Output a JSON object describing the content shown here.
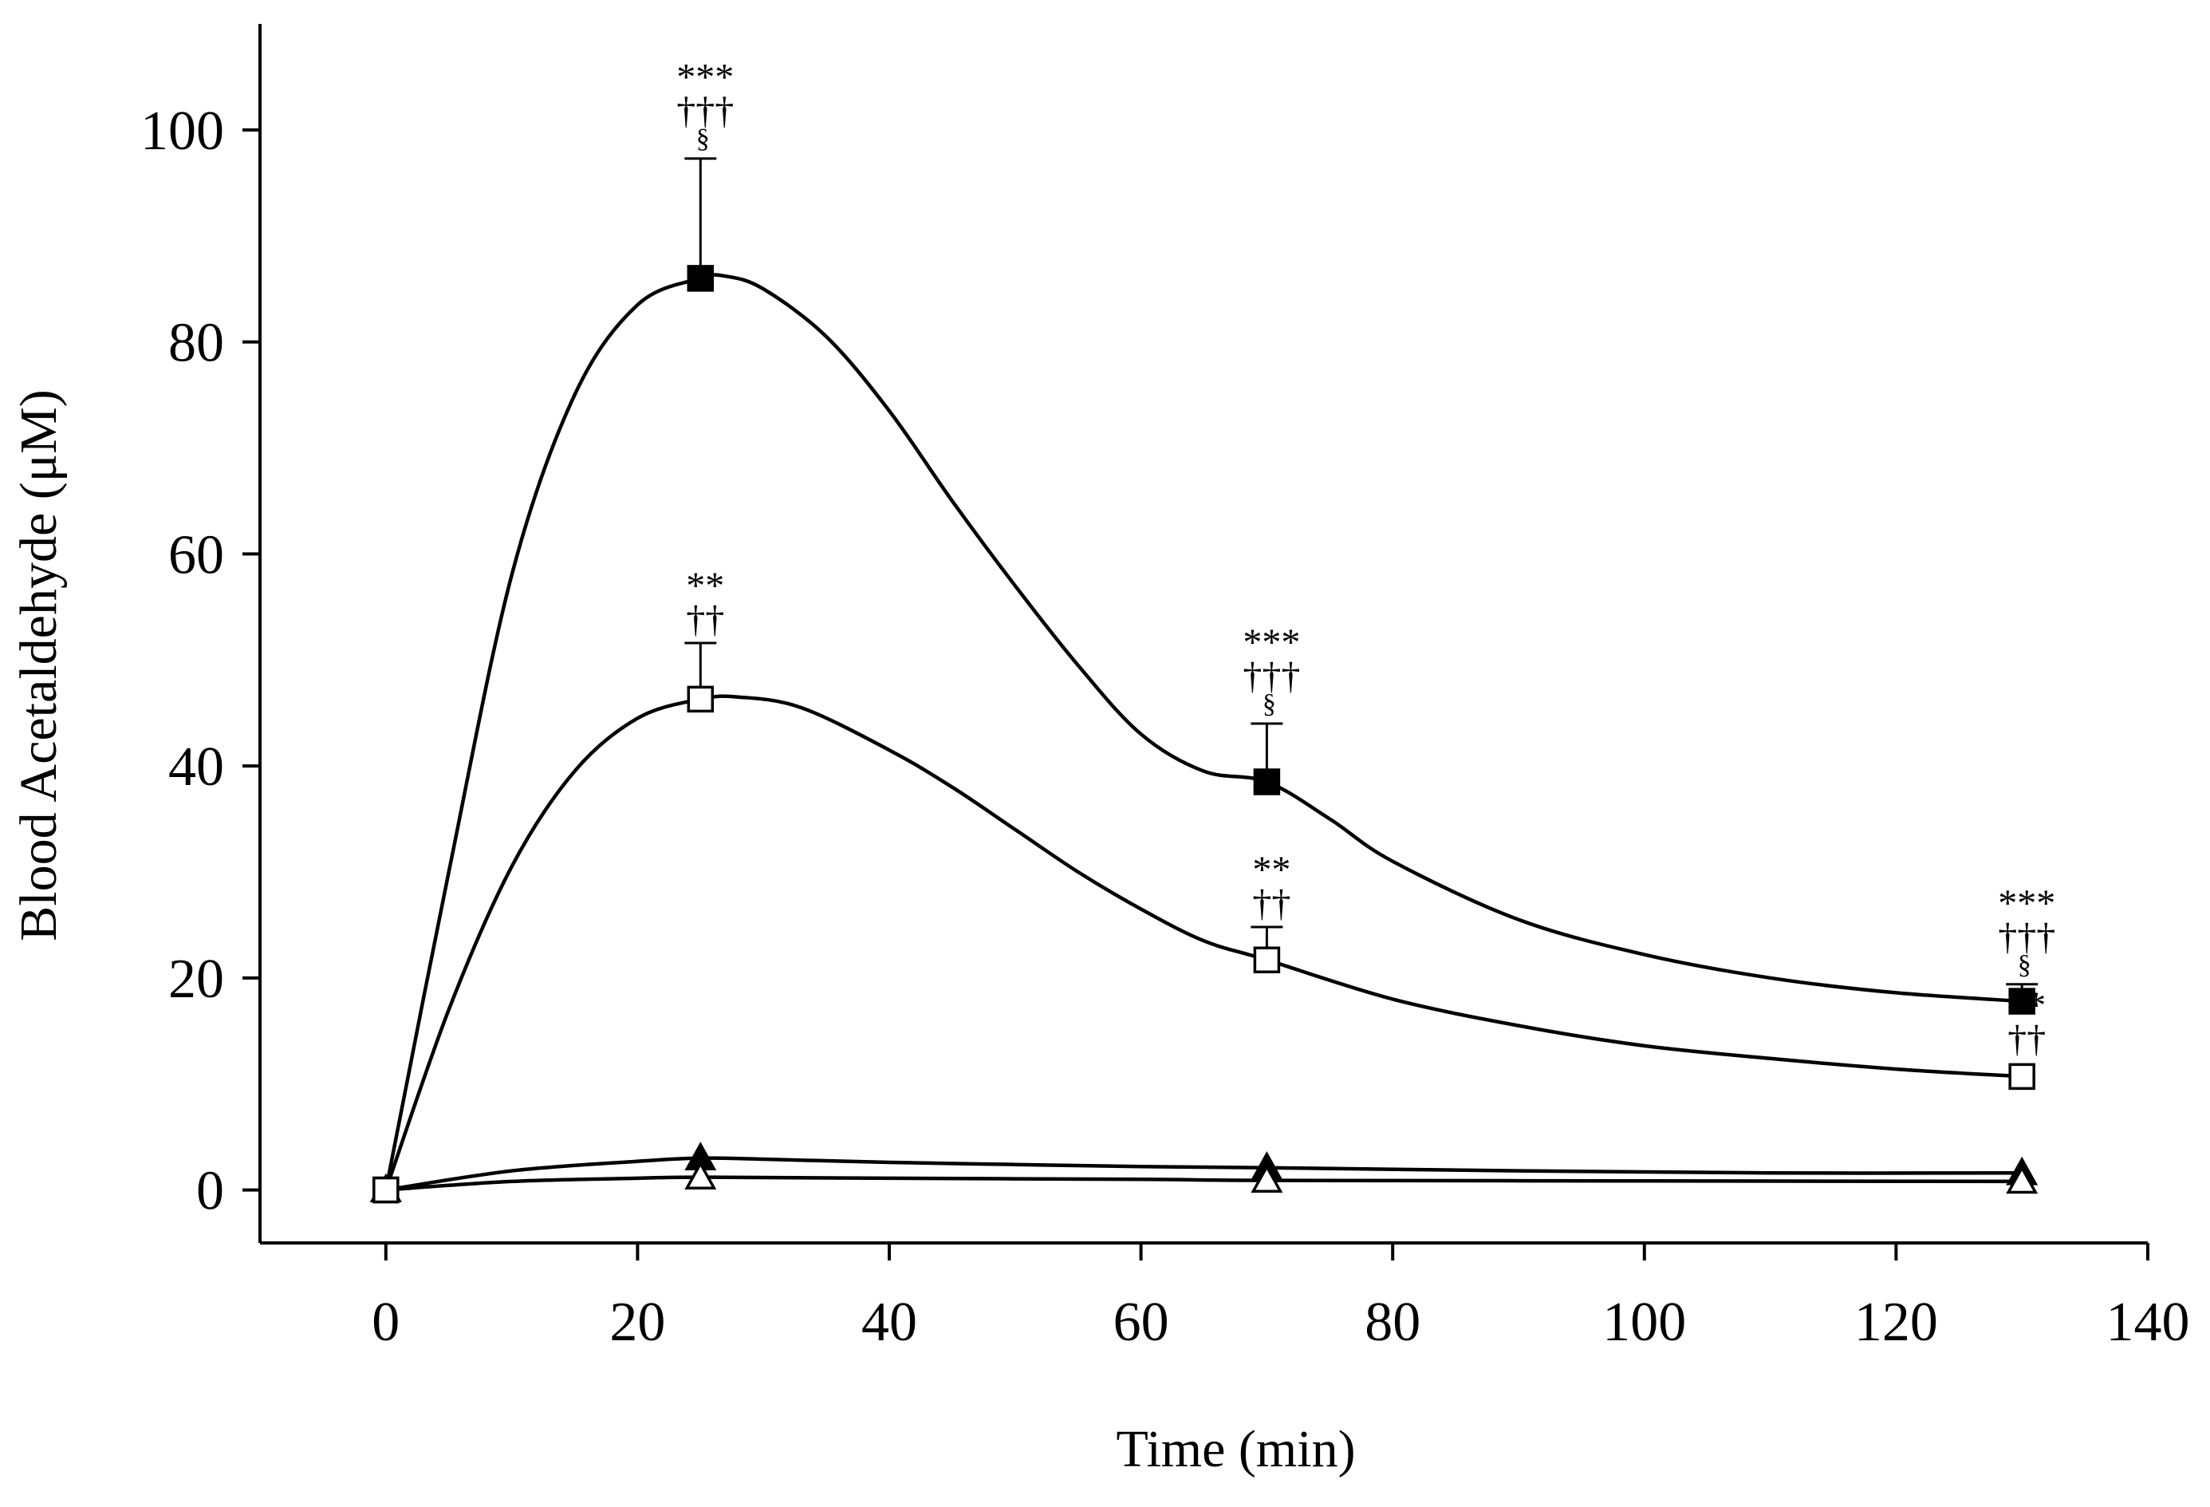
{
  "chart_data": {
    "type": "line",
    "title": "",
    "xlabel": "Time (min)",
    "ylabel": "Blood Acetaldehyde (μM)",
    "xlim": [
      -10,
      140
    ],
    "ylim": [
      -5,
      110
    ],
    "xticks": [
      0,
      20,
      40,
      60,
      80,
      100,
      120,
      140
    ],
    "yticks": [
      0,
      20,
      40,
      60,
      80,
      100
    ],
    "x_tick_labels": [
      "0",
      "20",
      "40",
      "60",
      "80",
      "100",
      "120",
      "140"
    ],
    "y_tick_labels": [
      "0",
      "20",
      "40",
      "60",
      "80",
      "100"
    ],
    "x": [
      0,
      25,
      70,
      130
    ],
    "series": [
      {
        "name": "filled-square",
        "marker": "square",
        "fill": "#000000",
        "values": [
          0,
          86,
          38.5,
          17.8
        ],
        "errors": [
          0,
          11.3,
          5.5,
          1.6
        ],
        "curve": [
          [
            0,
            0
          ],
          [
            5,
            30
          ],
          [
            10,
            58
          ],
          [
            15,
            75
          ],
          [
            20,
            83.5
          ],
          [
            25,
            86
          ],
          [
            27,
            86.2
          ],
          [
            30,
            85
          ],
          [
            35,
            80.5
          ],
          [
            40,
            73.5
          ],
          [
            45,
            65
          ],
          [
            50,
            57
          ],
          [
            55,
            49.5
          ],
          [
            60,
            43
          ],
          [
            65,
            39.5
          ],
          [
            70,
            38.5
          ],
          [
            75,
            35
          ],
          [
            80,
            31
          ],
          [
            90,
            25.5
          ],
          [
            100,
            22.2
          ],
          [
            110,
            20
          ],
          [
            120,
            18.6
          ],
          [
            130,
            17.8
          ]
        ]
      },
      {
        "name": "open-square",
        "marker": "square",
        "fill": "#ffffff",
        "values": [
          0,
          46.3,
          21.7,
          10.7
        ],
        "errors": [
          0,
          5.3,
          3.1,
          0
        ],
        "curve": [
          [
            0,
            0
          ],
          [
            5,
            17
          ],
          [
            10,
            30.5
          ],
          [
            15,
            39.5
          ],
          [
            20,
            44.5
          ],
          [
            25,
            46.3
          ],
          [
            28,
            46.5
          ],
          [
            33,
            45.5
          ],
          [
            40,
            41.5
          ],
          [
            45,
            38
          ],
          [
            50,
            34
          ],
          [
            55,
            30
          ],
          [
            60,
            26.5
          ],
          [
            65,
            23.5
          ],
          [
            70,
            21.7
          ],
          [
            80,
            18
          ],
          [
            90,
            15.5
          ],
          [
            100,
            13.6
          ],
          [
            110,
            12.4
          ],
          [
            120,
            11.4
          ],
          [
            130,
            10.7
          ]
        ]
      },
      {
        "name": "filled-triangle",
        "marker": "triangle",
        "fill": "#000000",
        "values": [
          0,
          3,
          2.1,
          1.6
        ],
        "errors": [
          0,
          0,
          0,
          0
        ],
        "curve": [
          [
            0,
            0
          ],
          [
            10,
            1.8
          ],
          [
            20,
            2.7
          ],
          [
            25,
            3
          ],
          [
            30,
            2.9
          ],
          [
            40,
            2.6
          ],
          [
            50,
            2.4
          ],
          [
            60,
            2.2
          ],
          [
            70,
            2.1
          ],
          [
            90,
            1.8
          ],
          [
            110,
            1.6
          ],
          [
            130,
            1.6
          ]
        ]
      },
      {
        "name": "open-triangle",
        "marker": "triangle",
        "fill": "#ffffff",
        "values": [
          0,
          1.2,
          0.9,
          0.8
        ],
        "errors": [
          0,
          0,
          0,
          0
        ],
        "curve": [
          [
            0,
            0
          ],
          [
            10,
            0.8
          ],
          [
            20,
            1.1
          ],
          [
            25,
            1.2
          ],
          [
            40,
            1.1
          ],
          [
            60,
            1.0
          ],
          [
            70,
            0.9
          ],
          [
            100,
            0.85
          ],
          [
            130,
            0.8
          ]
        ]
      }
    ],
    "annotations": [
      {
        "x": 25,
        "y": 97.3,
        "lines": [
          "***",
          "†††",
          "§"
        ]
      },
      {
        "x": 25,
        "y": 51.6,
        "lines": [
          "**",
          "††"
        ]
      },
      {
        "x": 70,
        "y": 44,
        "lines": [
          "***",
          "†††",
          "§"
        ]
      },
      {
        "x": 70,
        "y": 24.8,
        "lines": [
          "**",
          "††"
        ]
      },
      {
        "x": 130,
        "y": 19.4,
        "lines": [
          "***",
          "†††",
          "§"
        ]
      },
      {
        "x": 130,
        "y": 12.0,
        "lines": [
          "**",
          "††"
        ]
      }
    ]
  }
}
